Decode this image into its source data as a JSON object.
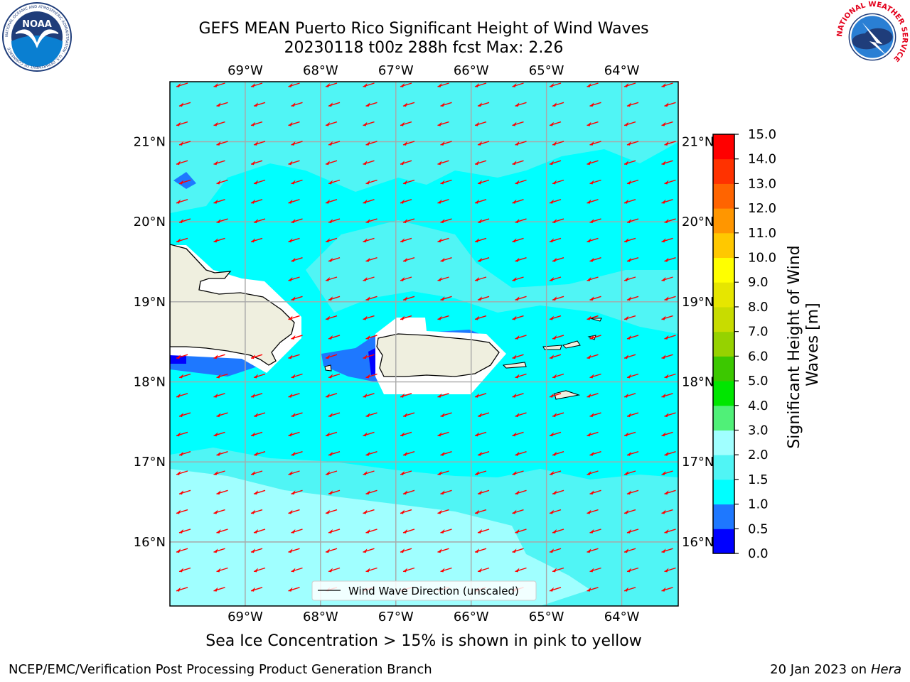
{
  "title": {
    "line1": "GEFS MEAN Puerto Rico Significant Height of Wind Waves",
    "line2": "20230118 t00z 288h fcst   Max: 2.26"
  },
  "map": {
    "lon_ticks_top": [
      "69°W",
      "68°W",
      "67°W",
      "66°W",
      "65°W",
      "64°W"
    ],
    "lon_ticks_bottom": [
      "69°W",
      "68°W",
      "67°W",
      "66°W",
      "65°W",
      "64°W"
    ],
    "lat_ticks_left": [
      "21°N",
      "20°N",
      "19°N",
      "18°N",
      "17°N",
      "16°N"
    ],
    "lat_ticks_right": [
      "21°N",
      "20°N",
      "19°N",
      "18°N",
      "17°N",
      "16°N"
    ],
    "extent": {
      "lon": [
        -70,
        -63.25
      ],
      "lat": [
        15.2,
        21.75
      ]
    },
    "arrow_direction": "toward west-southwest",
    "arrow_color": "#ff0000",
    "legend": {
      "label": "Wind Wave Direction (unscaled)"
    }
  },
  "colorbar": {
    "label": "Significant Height of Wind Waves [m]",
    "label_line1": "Significant Height of Wind",
    "label_line2": "Waves [m]",
    "ticks": [
      "0.0",
      "0.5",
      "1.0",
      "1.5",
      "2.0",
      "3.0",
      "4.0",
      "5.0",
      "6.0",
      "7.0",
      "8.0",
      "9.0",
      "10.0",
      "11.0",
      "12.0",
      "13.0",
      "14.0",
      "15.0"
    ],
    "colors": [
      "#0000ff",
      "#1e78ff",
      "#00ffff",
      "#50f5f5",
      "#a0ffff",
      "#50f078",
      "#00e600",
      "#3cc800",
      "#96d200",
      "#c8dc00",
      "#e6e600",
      "#ffff00",
      "#ffc800",
      "#ff9600",
      "#ff6400",
      "#ff3200",
      "#ff0000"
    ]
  },
  "note": "Sea Ice Concentration > 15% is shown in pink to yellow",
  "footer": {
    "left": "NCEP/EMC/Verification Post Processing Product Generation Branch",
    "date": "20 Jan 2023 on ",
    "machine": "Hera"
  },
  "logos": {
    "noaa_text": "NOAA",
    "noaa_ring": "NATIONAL OCEANIC AND ATMOSPHERIC ADMINISTRATION · U.S. DEPARTMENT OF COMMERCE",
    "nws_ring": "NATIONAL WEATHER SERVICE"
  }
}
